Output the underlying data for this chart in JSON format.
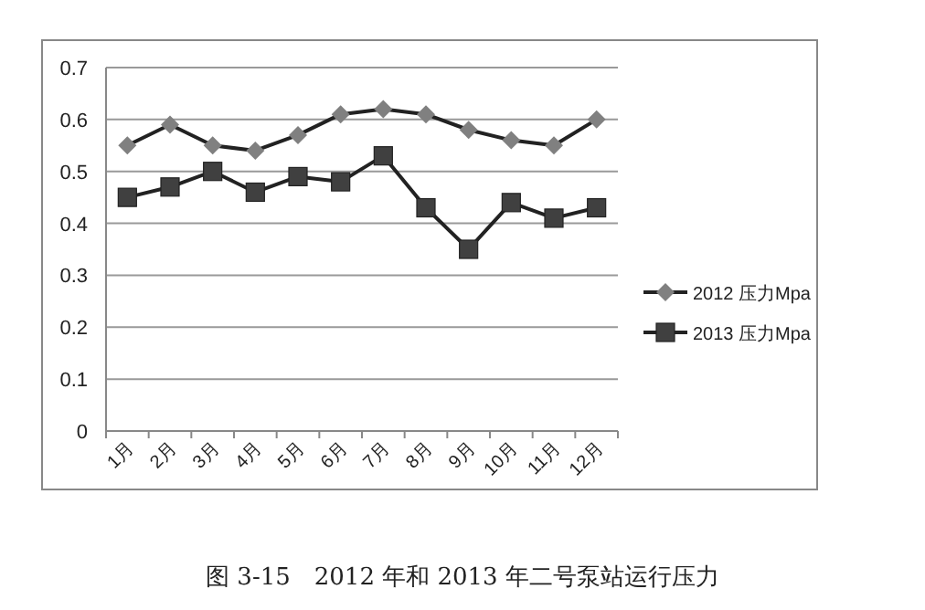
{
  "chart_data": {
    "type": "line",
    "categories": [
      "1月",
      "2月",
      "3月",
      "4月",
      "5月",
      "6月",
      "7月",
      "8月",
      "9月",
      "10月",
      "11月",
      "12月"
    ],
    "series": [
      {
        "name": "2012 压力Mpa",
        "color": "#808080",
        "marker": "diamond",
        "values": [
          0.55,
          0.59,
          0.55,
          0.54,
          0.57,
          0.61,
          0.62,
          0.61,
          0.58,
          0.56,
          0.55,
          0.6
        ]
      },
      {
        "name": "2013 压力Mpa",
        "color": "#404040",
        "marker": "square",
        "values": [
          0.45,
          0.47,
          0.5,
          0.46,
          0.49,
          0.48,
          0.53,
          0.43,
          0.35,
          0.44,
          0.41,
          0.43
        ]
      }
    ],
    "ylim": [
      0,
      0.7
    ],
    "yticks": [
      0,
      0.1,
      0.2,
      0.3,
      0.4,
      0.5,
      0.6,
      0.7
    ],
    "grid": "y",
    "legend": "right",
    "line_style": "solid",
    "annotations": [
      "图 3-15　2012 年和 2013 年二号泵站运行压力"
    ]
  }
}
